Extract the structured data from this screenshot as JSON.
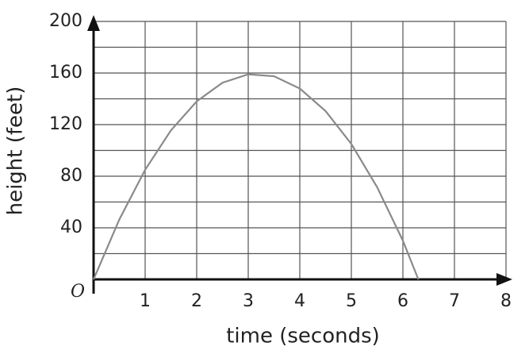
{
  "chart_data": {
    "type": "line",
    "x_label": "time (seconds)",
    "y_label": "height (feet)",
    "origin_label": "O",
    "x": [
      0,
      0.5,
      1,
      1.5,
      2,
      2.5,
      3,
      3.5,
      4,
      4.5,
      5,
      5.5,
      6,
      6.3
    ],
    "series": [
      {
        "name": "height",
        "color": "#8a8a8a",
        "values": [
          0,
          46.5,
          85,
          115.5,
          138,
          152.5,
          159,
          157.5,
          148,
          130.5,
          105,
          71.5,
          30,
          0
        ]
      }
    ],
    "xlim": [
      0,
      8
    ],
    "xticks": [
      1,
      2,
      3,
      4,
      5,
      6,
      7,
      8
    ],
    "ylim": [
      0,
      200
    ],
    "yticks": [
      40,
      80,
      120,
      160,
      200
    ],
    "minor_yticks": [
      20,
      60,
      100,
      140,
      180
    ],
    "grid": true
  }
}
